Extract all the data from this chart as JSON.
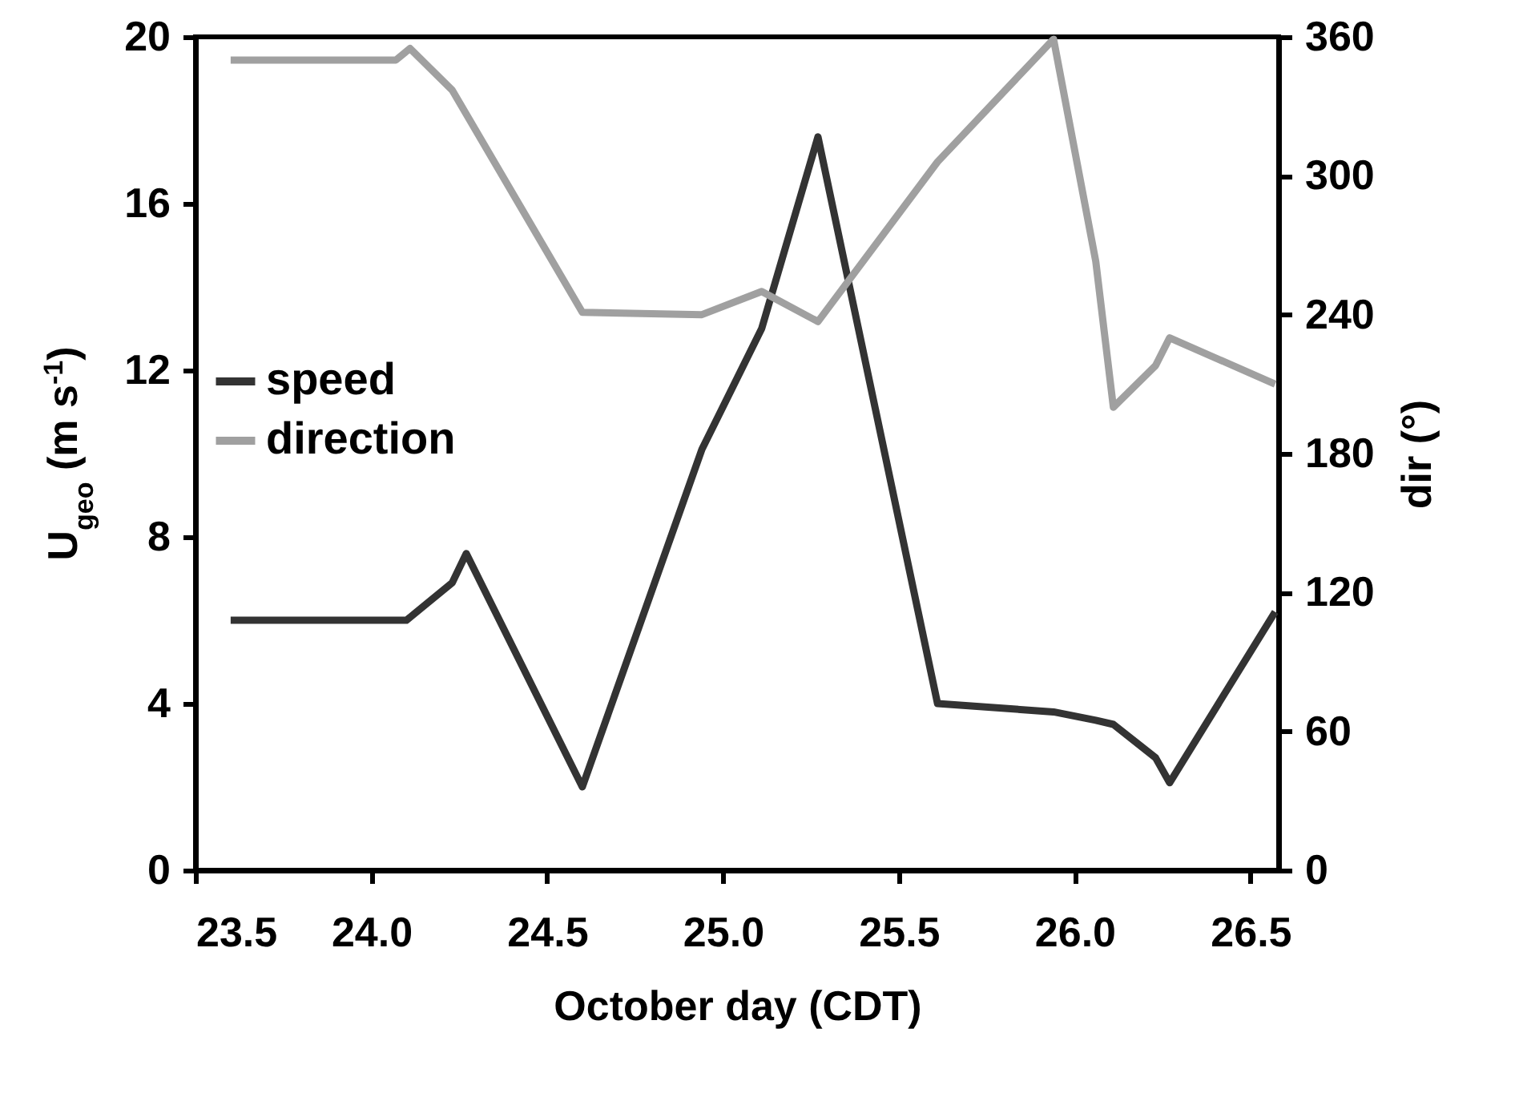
{
  "chart_data": {
    "type": "line",
    "xlabel": "October day (CDT)",
    "ylabel": "U$_{geo}$ (m s$^{-1}$)",
    "y2label": "dir (°)",
    "xlim": [
      23.5,
      26.58
    ],
    "xticks": [
      {
        "value": 23.5,
        "label": "23.5"
      },
      {
        "value": 24,
        "label": "24.0"
      },
      {
        "value": 24.5,
        "label": "24.5"
      },
      {
        "value": 25,
        "label": "25.0"
      },
      {
        "value": 25.5,
        "label": "25.5"
      },
      {
        "value": 26,
        "label": "26.0"
      },
      {
        "value": 26.5,
        "label": "26.5"
      }
    ],
    "ylim": [
      0,
      20
    ],
    "yticks": [
      0,
      4,
      8,
      12,
      16,
      20
    ],
    "y2lim": [
      0,
      360
    ],
    "y2ticks": [
      0,
      60,
      120,
      180,
      240,
      300,
      360
    ],
    "legend": "left",
    "grid": false,
    "marker": "none",
    "line_style": "solid",
    "series": [
      {
        "name": "speed",
        "color": "#333333",
        "x": [
          23.6,
          24.1,
          24.23,
          24.27,
          24.6,
          24.94,
          25.11,
          25.27,
          25.61,
          25.94,
          26.06,
          26.11,
          26.23,
          26.27,
          26.57
        ],
        "values": [
          6.0,
          6.0,
          6.9,
          7.6,
          2.0,
          10.1,
          13.0,
          17.6,
          4.0,
          3.8,
          3.6,
          3.5,
          2.7,
          2.1,
          6.2
        ]
      },
      {
        "name": "direction",
        "color": "#a0a0a0",
        "axis": "y2",
        "x": [
          23.6,
          24.07,
          24.11,
          24.23,
          24.6,
          24.94,
          25.11,
          25.27,
          25.61,
          25.94,
          26.06,
          26.11,
          26.23,
          26.27,
          26.57
        ],
        "values": [
          350,
          350,
          355,
          337,
          241,
          240,
          250,
          237,
          306,
          359,
          263,
          200,
          218,
          230,
          210
        ]
      }
    ]
  }
}
